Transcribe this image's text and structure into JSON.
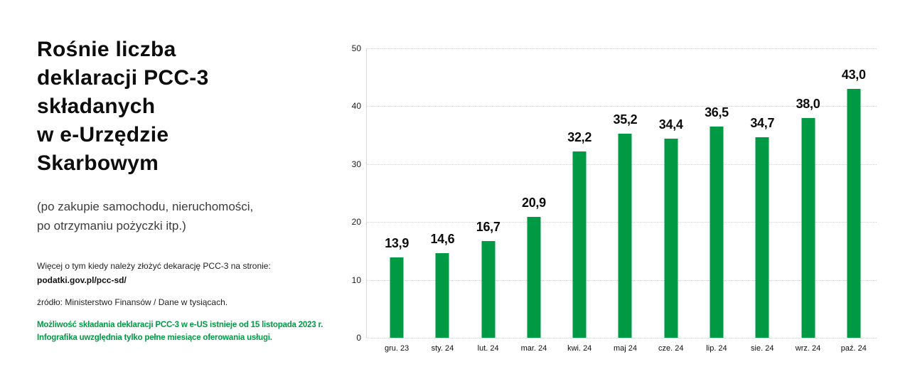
{
  "left_panel": {
    "title": "Rośnie liczba\ndeklaracji PCC-3\nskładanych\nw e-Urzędzie\nSkarbowym",
    "subtitle": "(po zakupie samochodu, nieruchomości,\npo otrzymaniu pożyczki itp.)",
    "info_line": "Więcej o tym kiedy należy złożyć dekarację PCC-3 na stronie:",
    "info_link": "podatki.gov.pl/pcc-sd/",
    "source_line": "źródło: Ministerstwo Finansów / Dane w tysiącach.",
    "note": "Możliwość składania deklaracji PCC-3 w e-US istnieje od 15 listopada 2023 r.\nInfografika uwzględnia tylko pełne miesiące oferowania usługi."
  },
  "colors": {
    "bar_green": "#009a44",
    "note_green": "#009a44",
    "grid_gray": "#d2d2d2",
    "axis_gray": "#d6d6d6"
  },
  "chart_data": {
    "type": "bar",
    "title": "Rośnie liczba deklaracji PCC-3 składanych w e-Urzędzie Skarbowym",
    "categories": [
      "gru. 23",
      "sty. 24",
      "lut. 24",
      "mar. 24",
      "kwi. 24",
      "maj 24",
      "cze. 24",
      "lip. 24",
      "sie. 24",
      "wrz. 24",
      "paź. 24"
    ],
    "values": [
      13.9,
      14.6,
      16.7,
      20.9,
      32.2,
      35.2,
      34.4,
      36.5,
      34.7,
      38.0,
      43.0
    ],
    "value_labels": [
      "13,9",
      "14,6",
      "16,7",
      "20,9",
      "32,2",
      "35,2",
      "34,4",
      "36,5",
      "34,7",
      "38,0",
      "43,0"
    ],
    "xlabel": "",
    "ylabel": "",
    "y_ticks": [
      0,
      10,
      20,
      30,
      40,
      50
    ],
    "ylim": [
      0,
      50
    ],
    "grid": true,
    "legend": false,
    "units": "tysiące deklaracji"
  }
}
